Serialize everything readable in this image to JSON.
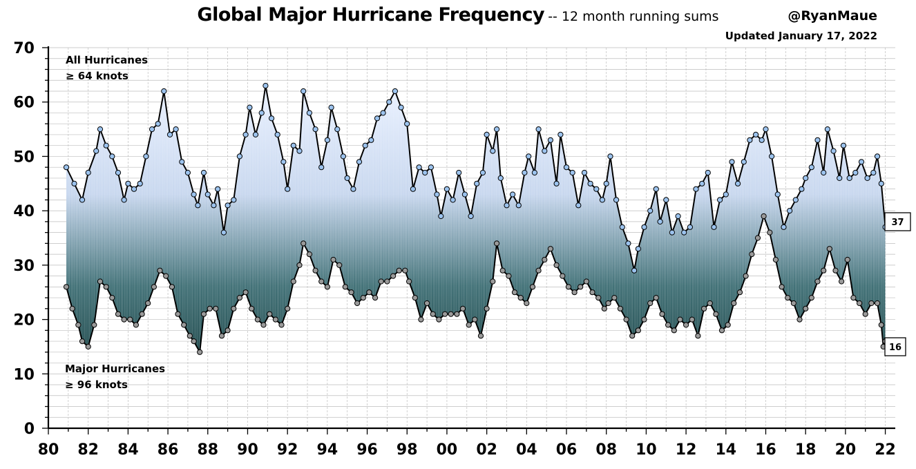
{
  "header": {
    "title": "Global Major Hurricane Frequency",
    "subtitle": "-- 12 month running sums",
    "handle": "@RyanMaue",
    "updated": "Updated January 17, 2022"
  },
  "chart_data": {
    "type": "line",
    "xlim": [
      1980,
      2022.5
    ],
    "ylim": [
      0,
      70
    ],
    "y_ticks": [
      0,
      10,
      20,
      30,
      40,
      50,
      60,
      70
    ],
    "x_ticks": [
      {
        "value": 1980,
        "label": "80"
      },
      {
        "value": 1982,
        "label": "82"
      },
      {
        "value": 1984,
        "label": "84"
      },
      {
        "value": 1986,
        "label": "86"
      },
      {
        "value": 1988,
        "label": "88"
      },
      {
        "value": 1990,
        "label": "90"
      },
      {
        "value": 1992,
        "label": "92"
      },
      {
        "value": 1994,
        "label": "94"
      },
      {
        "value": 1996,
        "label": "96"
      },
      {
        "value": 1998,
        "label": "98"
      },
      {
        "value": 2000,
        "label": "00"
      },
      {
        "value": 2002,
        "label": "02"
      },
      {
        "value": 2004,
        "label": "04"
      },
      {
        "value": 2006,
        "label": "06"
      },
      {
        "value": 2008,
        "label": "08"
      },
      {
        "value": 2010,
        "label": "10"
      },
      {
        "value": 2012,
        "label": "12"
      },
      {
        "value": 2014,
        "label": "14"
      },
      {
        "value": 2016,
        "label": "16"
      },
      {
        "value": 2018,
        "label": "18"
      },
      {
        "value": 2020,
        "label": "20"
      },
      {
        "value": 2022,
        "label": "22"
      }
    ],
    "grid": true,
    "series": [
      {
        "name": "All Hurricanes",
        "color": "#9cc3ee",
        "points": [
          [
            1980.9,
            48
          ],
          [
            1981.3,
            45
          ],
          [
            1981.7,
            42
          ],
          [
            1982.0,
            47
          ],
          [
            1982.4,
            51
          ],
          [
            1982.6,
            55
          ],
          [
            1982.9,
            52
          ],
          [
            1983.2,
            50
          ],
          [
            1983.5,
            47
          ],
          [
            1983.8,
            42
          ],
          [
            1984.0,
            45
          ],
          [
            1984.3,
            44
          ],
          [
            1984.6,
            45
          ],
          [
            1984.9,
            50
          ],
          [
            1985.2,
            55
          ],
          [
            1985.5,
            56
          ],
          [
            1985.8,
            62
          ],
          [
            1986.1,
            54
          ],
          [
            1986.4,
            55
          ],
          [
            1986.7,
            49
          ],
          [
            1987.0,
            47
          ],
          [
            1987.3,
            43
          ],
          [
            1987.5,
            41
          ],
          [
            1987.8,
            47
          ],
          [
            1988.0,
            43
          ],
          [
            1988.3,
            41
          ],
          [
            1988.5,
            44
          ],
          [
            1988.8,
            36
          ],
          [
            1989.0,
            41
          ],
          [
            1989.3,
            42
          ],
          [
            1989.6,
            50
          ],
          [
            1989.9,
            54
          ],
          [
            1990.1,
            59
          ],
          [
            1990.4,
            54
          ],
          [
            1990.7,
            58
          ],
          [
            1990.9,
            63
          ],
          [
            1991.2,
            57
          ],
          [
            1991.5,
            54
          ],
          [
            1991.8,
            49
          ],
          [
            1992.0,
            44
          ],
          [
            1992.3,
            52
          ],
          [
            1992.6,
            51
          ],
          [
            1992.8,
            62
          ],
          [
            1993.1,
            58
          ],
          [
            1993.4,
            55
          ],
          [
            1993.7,
            48
          ],
          [
            1994.0,
            53
          ],
          [
            1994.2,
            59
          ],
          [
            1994.5,
            55
          ],
          [
            1994.8,
            50
          ],
          [
            1995.0,
            46
          ],
          [
            1995.3,
            44
          ],
          [
            1995.6,
            49
          ],
          [
            1995.9,
            52
          ],
          [
            1996.2,
            53
          ],
          [
            1996.5,
            57
          ],
          [
            1996.8,
            58
          ],
          [
            1997.1,
            60
          ],
          [
            1997.4,
            62
          ],
          [
            1997.7,
            59
          ],
          [
            1998.0,
            56
          ],
          [
            1998.3,
            44
          ],
          [
            1998.6,
            48
          ],
          [
            1998.9,
            47
          ],
          [
            1999.2,
            48
          ],
          [
            1999.5,
            43
          ],
          [
            1999.7,
            39
          ],
          [
            2000.0,
            44
          ],
          [
            2000.3,
            42
          ],
          [
            2000.6,
            47
          ],
          [
            2000.9,
            43
          ],
          [
            2001.2,
            39
          ],
          [
            2001.5,
            45
          ],
          [
            2001.8,
            47
          ],
          [
            2002.0,
            54
          ],
          [
            2002.3,
            51
          ],
          [
            2002.5,
            55
          ],
          [
            2002.7,
            46
          ],
          [
            2003.0,
            41
          ],
          [
            2003.3,
            43
          ],
          [
            2003.6,
            41
          ],
          [
            2003.9,
            47
          ],
          [
            2004.1,
            50
          ],
          [
            2004.4,
            47
          ],
          [
            2004.6,
            55
          ],
          [
            2004.9,
            51
          ],
          [
            2005.2,
            53
          ],
          [
            2005.5,
            45
          ],
          [
            2005.7,
            54
          ],
          [
            2006.0,
            48
          ],
          [
            2006.3,
            47
          ],
          [
            2006.6,
            41
          ],
          [
            2006.9,
            47
          ],
          [
            2007.2,
            45
          ],
          [
            2007.5,
            44
          ],
          [
            2007.8,
            42
          ],
          [
            2008.0,
            45
          ],
          [
            2008.2,
            50
          ],
          [
            2008.5,
            42
          ],
          [
            2008.8,
            37
          ],
          [
            2009.1,
            34
          ],
          [
            2009.4,
            29
          ],
          [
            2009.6,
            33
          ],
          [
            2009.9,
            37
          ],
          [
            2010.2,
            40
          ],
          [
            2010.5,
            44
          ],
          [
            2010.7,
            38
          ],
          [
            2011.0,
            42
          ],
          [
            2011.3,
            36
          ],
          [
            2011.6,
            39
          ],
          [
            2011.9,
            36
          ],
          [
            2012.2,
            37
          ],
          [
            2012.5,
            44
          ],
          [
            2012.8,
            45
          ],
          [
            2013.1,
            47
          ],
          [
            2013.4,
            37
          ],
          [
            2013.7,
            42
          ],
          [
            2014.0,
            43
          ],
          [
            2014.3,
            49
          ],
          [
            2014.6,
            45
          ],
          [
            2014.9,
            49
          ],
          [
            2015.2,
            53
          ],
          [
            2015.5,
            54
          ],
          [
            2015.8,
            53
          ],
          [
            2016.0,
            55
          ],
          [
            2016.3,
            50
          ],
          [
            2016.6,
            43
          ],
          [
            2016.9,
            37
          ],
          [
            2017.2,
            40
          ],
          [
            2017.5,
            42
          ],
          [
            2017.8,
            44
          ],
          [
            2018.0,
            46
          ],
          [
            2018.3,
            48
          ],
          [
            2018.6,
            53
          ],
          [
            2018.9,
            47
          ],
          [
            2019.1,
            55
          ],
          [
            2019.4,
            51
          ],
          [
            2019.7,
            46
          ],
          [
            2019.9,
            52
          ],
          [
            2020.2,
            46
          ],
          [
            2020.5,
            47
          ],
          [
            2020.8,
            49
          ],
          [
            2021.1,
            46
          ],
          [
            2021.4,
            47
          ],
          [
            2021.6,
            50
          ],
          [
            2021.8,
            45
          ],
          [
            2022.0,
            37
          ]
        ]
      },
      {
        "name": "Major Hurricanes",
        "color": "#9a9a9a",
        "points": [
          [
            1980.9,
            26
          ],
          [
            1981.2,
            22
          ],
          [
            1981.5,
            19
          ],
          [
            1981.7,
            16
          ],
          [
            1982.0,
            15
          ],
          [
            1982.3,
            19
          ],
          [
            1982.6,
            27
          ],
          [
            1982.9,
            26
          ],
          [
            1983.2,
            24
          ],
          [
            1983.5,
            21
          ],
          [
            1983.8,
            20
          ],
          [
            1984.1,
            20
          ],
          [
            1984.4,
            19
          ],
          [
            1984.7,
            21
          ],
          [
            1985.0,
            23
          ],
          [
            1985.3,
            26
          ],
          [
            1985.6,
            29
          ],
          [
            1985.9,
            28
          ],
          [
            1986.2,
            26
          ],
          [
            1986.5,
            21
          ],
          [
            1986.8,
            19
          ],
          [
            1987.1,
            17
          ],
          [
            1987.3,
            16
          ],
          [
            1987.6,
            14
          ],
          [
            1987.8,
            21
          ],
          [
            1988.1,
            22
          ],
          [
            1988.4,
            22
          ],
          [
            1988.7,
            17
          ],
          [
            1989.0,
            18
          ],
          [
            1989.3,
            22
          ],
          [
            1989.6,
            24
          ],
          [
            1989.9,
            25
          ],
          [
            1990.2,
            22
          ],
          [
            1990.5,
            20
          ],
          [
            1990.8,
            19
          ],
          [
            1991.1,
            21
          ],
          [
            1991.4,
            20
          ],
          [
            1991.7,
            19
          ],
          [
            1992.0,
            22
          ],
          [
            1992.3,
            27
          ],
          [
            1992.6,
            30
          ],
          [
            1992.8,
            34
          ],
          [
            1993.1,
            32
          ],
          [
            1993.4,
            29
          ],
          [
            1993.7,
            27
          ],
          [
            1994.0,
            26
          ],
          [
            1994.3,
            31
          ],
          [
            1994.6,
            30
          ],
          [
            1994.9,
            26
          ],
          [
            1995.2,
            25
          ],
          [
            1995.5,
            23
          ],
          [
            1995.8,
            24
          ],
          [
            1996.1,
            25
          ],
          [
            1996.4,
            24
          ],
          [
            1996.7,
            27
          ],
          [
            1997.0,
            27
          ],
          [
            1997.3,
            28
          ],
          [
            1997.6,
            29
          ],
          [
            1997.9,
            29
          ],
          [
            1998.1,
            27
          ],
          [
            1998.4,
            24
          ],
          [
            1998.7,
            20
          ],
          [
            1999.0,
            23
          ],
          [
            1999.3,
            21
          ],
          [
            1999.6,
            20
          ],
          [
            1999.9,
            21
          ],
          [
            2000.2,
            21
          ],
          [
            2000.5,
            21
          ],
          [
            2000.8,
            22
          ],
          [
            2001.1,
            19
          ],
          [
            2001.4,
            20
          ],
          [
            2001.7,
            17
          ],
          [
            2002.0,
            22
          ],
          [
            2002.3,
            27
          ],
          [
            2002.5,
            34
          ],
          [
            2002.8,
            29
          ],
          [
            2003.1,
            28
          ],
          [
            2003.4,
            25
          ],
          [
            2003.7,
            24
          ],
          [
            2004.0,
            23
          ],
          [
            2004.3,
            26
          ],
          [
            2004.6,
            29
          ],
          [
            2004.9,
            31
          ],
          [
            2005.2,
            33
          ],
          [
            2005.5,
            30
          ],
          [
            2005.8,
            28
          ],
          [
            2006.1,
            26
          ],
          [
            2006.4,
            25
          ],
          [
            2006.7,
            26
          ],
          [
            2007.0,
            27
          ],
          [
            2007.3,
            25
          ],
          [
            2007.6,
            24
          ],
          [
            2007.9,
            22
          ],
          [
            2008.1,
            23
          ],
          [
            2008.4,
            24
          ],
          [
            2008.7,
            22
          ],
          [
            2009.0,
            20
          ],
          [
            2009.3,
            17
          ],
          [
            2009.6,
            18
          ],
          [
            2009.9,
            20
          ],
          [
            2010.2,
            23
          ],
          [
            2010.5,
            24
          ],
          [
            2010.8,
            21
          ],
          [
            2011.1,
            19
          ],
          [
            2011.4,
            18
          ],
          [
            2011.7,
            20
          ],
          [
            2012.0,
            19
          ],
          [
            2012.3,
            20
          ],
          [
            2012.6,
            17
          ],
          [
            2012.9,
            22
          ],
          [
            2013.2,
            23
          ],
          [
            2013.5,
            21
          ],
          [
            2013.8,
            18
          ],
          [
            2014.1,
            19
          ],
          [
            2014.4,
            23
          ],
          [
            2014.7,
            25
          ],
          [
            2015.0,
            28
          ],
          [
            2015.3,
            32
          ],
          [
            2015.6,
            35
          ],
          [
            2015.9,
            39
          ],
          [
            2016.2,
            36
          ],
          [
            2016.5,
            31
          ],
          [
            2016.8,
            26
          ],
          [
            2017.1,
            24
          ],
          [
            2017.4,
            23
          ],
          [
            2017.7,
            20
          ],
          [
            2018.0,
            22
          ],
          [
            2018.3,
            24
          ],
          [
            2018.6,
            27
          ],
          [
            2018.9,
            29
          ],
          [
            2019.2,
            33
          ],
          [
            2019.5,
            29
          ],
          [
            2019.8,
            27
          ],
          [
            2020.1,
            31
          ],
          [
            2020.4,
            24
          ],
          [
            2020.7,
            23
          ],
          [
            2021.0,
            21
          ],
          [
            2021.3,
            23
          ],
          [
            2021.6,
            23
          ],
          [
            2021.8,
            19
          ],
          [
            2021.9,
            15
          ],
          [
            2022.0,
            16
          ]
        ]
      }
    ],
    "annotations": {
      "all_label_1": "All Hurricanes",
      "all_label_2": "≥ 64 knots",
      "major_label_1": "Major Hurricanes",
      "major_label_2": "≥ 96 knots"
    },
    "end_labels": {
      "all": "37",
      "major": "16"
    }
  }
}
